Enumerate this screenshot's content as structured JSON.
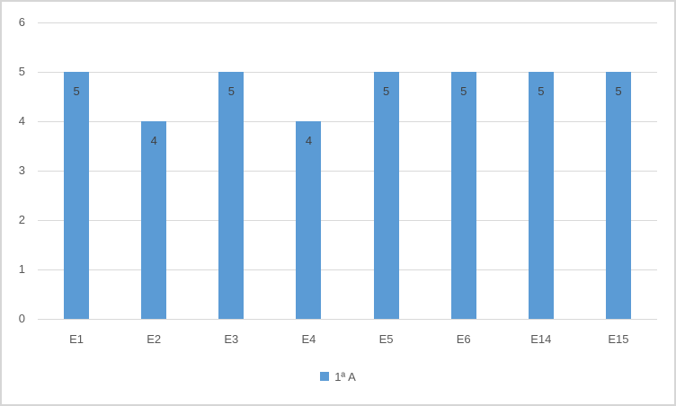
{
  "chart_data": {
    "type": "bar",
    "title": "",
    "categories": [
      "E1",
      "E2",
      "E3",
      "E4",
      "E5",
      "E6",
      "E14",
      "E15"
    ],
    "series": [
      {
        "name": "1ª A",
        "values": [
          5,
          4,
          5,
          4,
          5,
          5,
          5,
          5
        ]
      }
    ],
    "data_labels": [
      5,
      4,
      5,
      4,
      5,
      5,
      5,
      5
    ],
    "ylim": [
      0,
      6
    ],
    "yticks": [
      0,
      1,
      2,
      3,
      4,
      5,
      6
    ],
    "xlabel": "",
    "ylabel": "",
    "grid": true,
    "legend_position": "bottom"
  },
  "colors": {
    "bar": "#5b9bd5",
    "gridline": "#d9d9d9",
    "axis_text": "#595959",
    "data_label_text": "#404040",
    "chart_border": "#d6d6d6",
    "background": "#ffffff"
  }
}
